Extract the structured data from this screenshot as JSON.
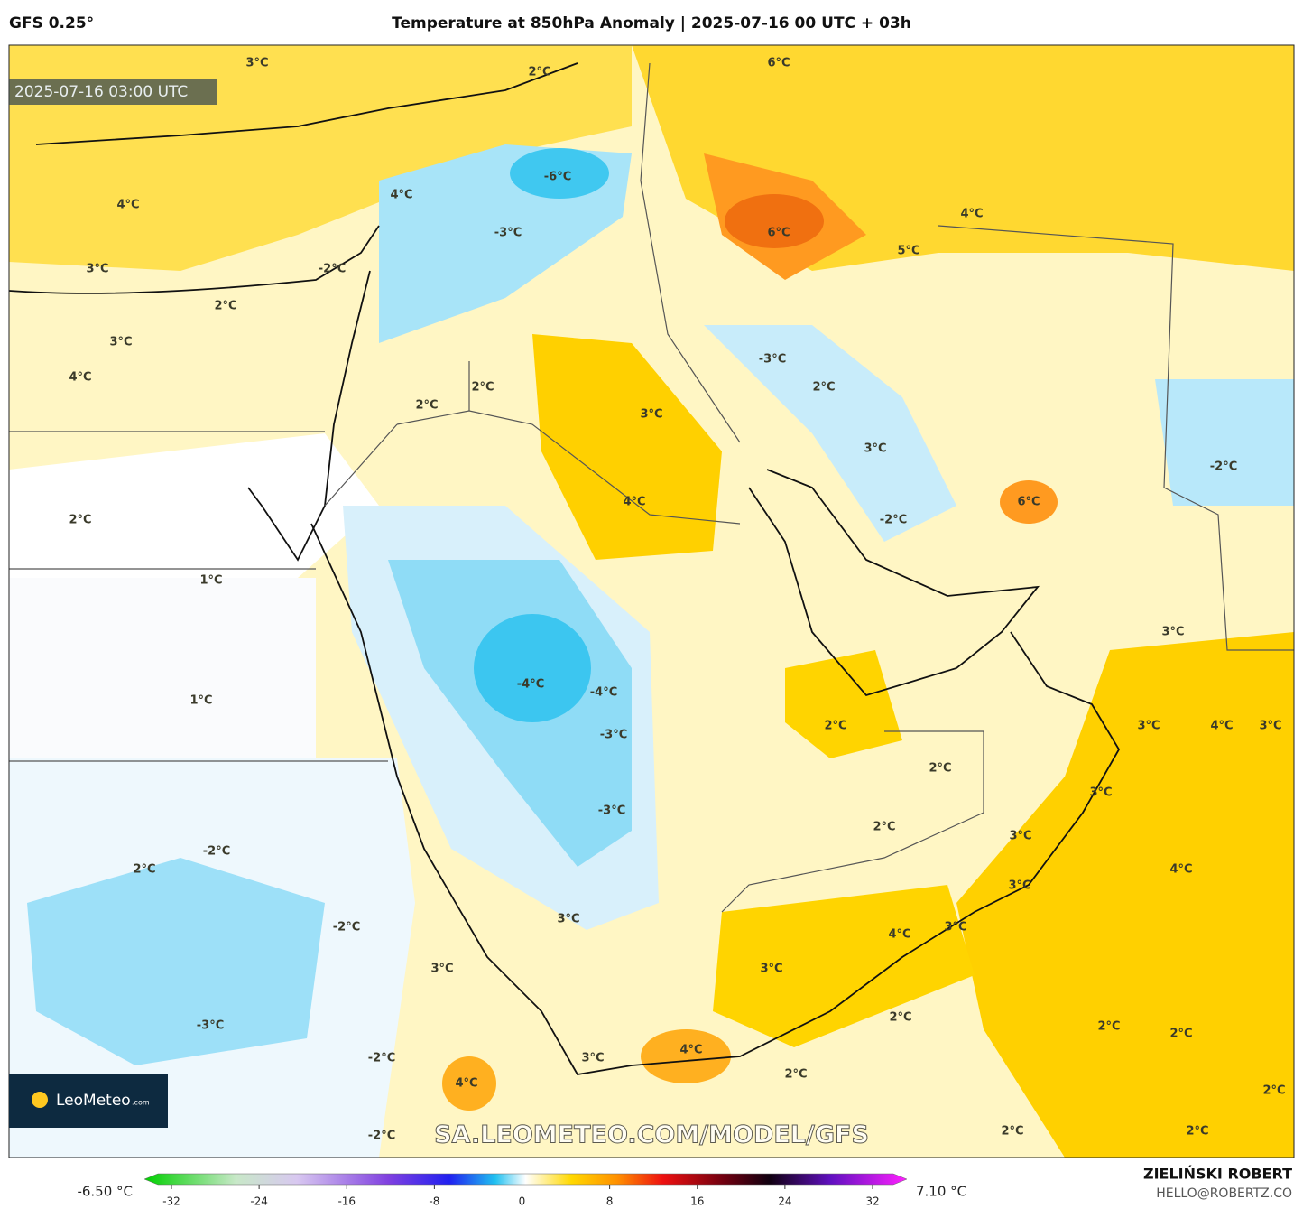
{
  "header": {
    "model": "GFS 0.25°",
    "title": "Temperature at 850hPa Anomaly | 2025-07-16 00 UTC + 03h"
  },
  "map": {
    "timestamp": "2025-07-16 03:00 UTC",
    "labels": [
      "3°C",
      "2°C",
      "6°C",
      "4°C",
      "-6°C",
      "4°C",
      "-3°C",
      "6°C",
      "4°C",
      "5°C",
      "3°C",
      "-2°C",
      "2°C",
      "3°C",
      "-3°C",
      "4°C",
      "2°C",
      "2°C",
      "2°C",
      "3°C",
      "3°C",
      "-2°C",
      "4°C",
      "6°C",
      "2°C",
      "-2°C",
      "1°C",
      "3°C",
      "-4°C",
      "-4°C",
      "1°C",
      "2°C",
      "3°C",
      "4°C",
      "3°C",
      "-3°C",
      "2°C",
      "3°C",
      "-3°C",
      "2°C",
      "3°C",
      "-2°C",
      "2°C",
      "4°C",
      "3°C",
      "3°C",
      "-2°C",
      "4°C",
      "3°C",
      "3°C",
      "3°C",
      "2°C",
      "-3°C",
      "2°C",
      "2°C",
      "3°C",
      "4°C",
      "-2°C",
      "2°C",
      "4°C",
      "2°C",
      "-2°C",
      "2°C",
      "2°C"
    ],
    "watermark": "SA.LEOMETEO.COM/MODEL/GFS",
    "logo": {
      "name": "LeoMeteo",
      "suffix": ".com"
    }
  },
  "colorbar": {
    "min_label": "-6.50 °C",
    "max_label": "7.10 °C",
    "ticks": [
      -32,
      -24,
      -16,
      -8,
      0,
      8,
      16,
      24,
      32
    ]
  },
  "footer": {
    "author": "ZIELIŃSKI ROBERT",
    "contact": "HELLO@ROBERTZ.CO"
  }
}
